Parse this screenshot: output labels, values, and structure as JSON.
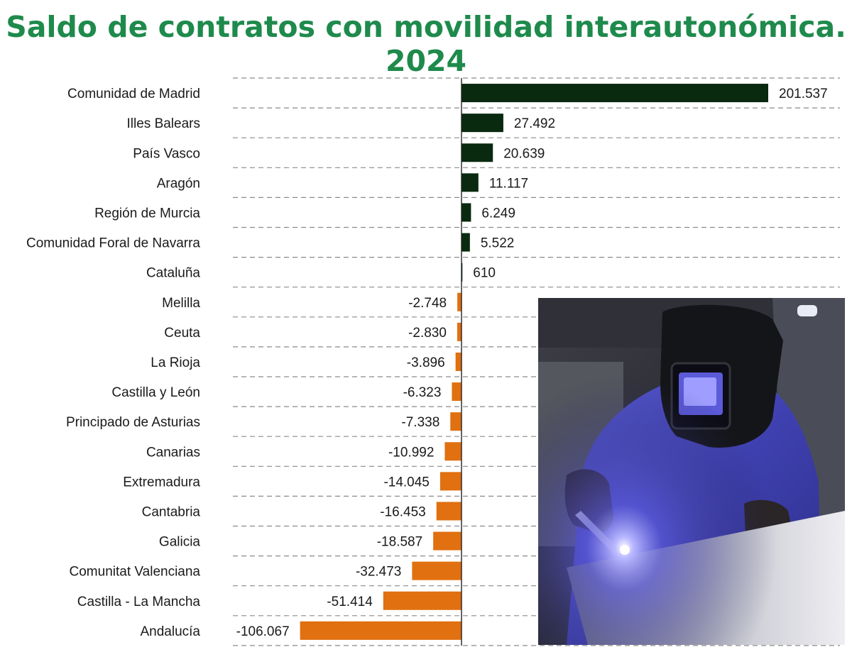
{
  "title": "Saldo de contratos con movilidad interautonómica. 2024",
  "colors": {
    "title": "#1e8a4c",
    "positive": "#0a2a0f",
    "negative": "#e07010",
    "axis": "#222222",
    "grid": "#8a8a8a"
  },
  "photo": {
    "icon": "welder-photo"
  },
  "chart_data": {
    "type": "bar",
    "orientation": "horizontal",
    "title": "Saldo de contratos con movilidad interautonómica. 2024",
    "categories": [
      "Comunidad de Madrid",
      "Illes Balears",
      "País Vasco",
      "Aragón",
      "Región de Murcia",
      "Comunidad Foral de Navarra",
      "Cataluña",
      "Melilla",
      "Ceuta",
      "La Rioja",
      "Castilla y León",
      "Principado de Asturias",
      "Canarias",
      "Extremadura",
      "Cantabria",
      "Galicia",
      "Comunitat Valenciana",
      "Castilla - La Mancha",
      "Andalucía"
    ],
    "values": [
      201537,
      27492,
      20639,
      11117,
      6249,
      5522,
      610,
      -2748,
      -2830,
      -3896,
      -6323,
      -7338,
      -10992,
      -14045,
      -16453,
      -18587,
      -32473,
      -51414,
      -106067
    ],
    "value_labels": [
      "201.537",
      "27.492",
      "20.639",
      "11.117",
      "6.249",
      "5.522",
      "610",
      "-2.748",
      "-2.830",
      "-3.896",
      "-6.323",
      "-7.338",
      "-10.992",
      "-14.045",
      "-16.453",
      "-18.587",
      "-32.473",
      "-51.414",
      "-106.067"
    ],
    "grid": true,
    "grid_style": "dashed",
    "legend": "none"
  }
}
